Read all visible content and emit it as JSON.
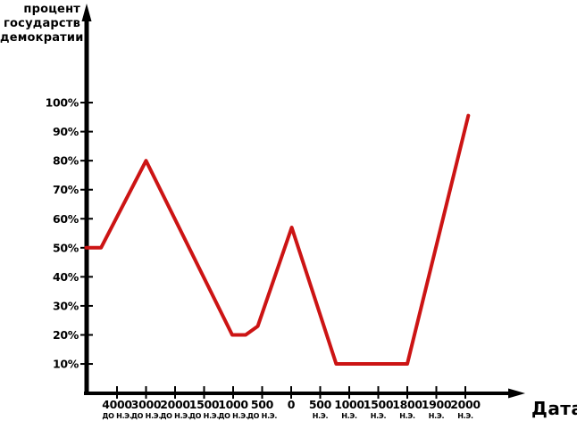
{
  "page": {
    "background_color": "#ffffff",
    "text_color": "#000000"
  },
  "chart_data": {
    "type": "line",
    "title": "",
    "ylabel": "процент государств демократии",
    "ylabel_lines": [
      "процент",
      "государств",
      "демократии"
    ],
    "xlabel": "Дата",
    "ylim": [
      0,
      100
    ],
    "grid": false,
    "legend": "none",
    "axis_color": "#000000",
    "y_ticks": [
      "100%",
      "90%",
      "80%",
      "70%",
      "60%",
      "50%",
      "40%",
      "30%",
      "20%",
      "10%"
    ],
    "y_tick_values": [
      100,
      90,
      80,
      70,
      60,
      50,
      40,
      30,
      20,
      10
    ],
    "x_ticks": [
      {
        "label": "4000",
        "era": "ДО Н.Э."
      },
      {
        "label": "3000",
        "era": "ДО Н.Э."
      },
      {
        "label": "2000",
        "era": "ДО Н.Э."
      },
      {
        "label": "1500",
        "era": "ДО Н.Э."
      },
      {
        "label": "1000",
        "era": "ДО Н.Э."
      },
      {
        "label": "500",
        "era": "ДО Н.Э."
      },
      {
        "label": "0",
        "era": ""
      },
      {
        "label": "500",
        "era": "Н.Э."
      },
      {
        "label": "1000",
        "era": "Н.Э."
      },
      {
        "label": "1500",
        "era": "Н.Э."
      },
      {
        "label": "1800",
        "era": "Н.Э."
      },
      {
        "label": "1900",
        "era": "Н.Э."
      },
      {
        "label": "2000",
        "era": "Н.Э."
      }
    ],
    "points_x_unit": "index into x_ticks (ticks are uniformly spaced); negative = left of first tick",
    "series": [
      {
        "name": "процент государств демократии",
        "color": "#cc1414",
        "points": [
          {
            "tick_x": -1.06,
            "percent": 50
          },
          {
            "tick_x": -0.55,
            "percent": 50
          },
          {
            "tick_x": 1.0,
            "percent": 80
          },
          {
            "tick_x": 3.97,
            "percent": 20
          },
          {
            "tick_x": 4.43,
            "percent": 20
          },
          {
            "tick_x": 4.85,
            "percent": 23
          },
          {
            "tick_x": 6.02,
            "percent": 57
          },
          {
            "tick_x": 7.55,
            "percent": 10
          },
          {
            "tick_x": 10.0,
            "percent": 10
          },
          {
            "tick_x": 12.1,
            "percent": 95.5
          }
        ],
        "key_readings": [
          {
            "x_label": "левый край (до 4000 до н.э.)",
            "percent": 50
          },
          {
            "x_label": "3000 до н.э.",
            "percent": 80
          },
          {
            "x_label": "1000 до н.э.",
            "percent": 20
          },
          {
            "x_label": "500 до н.э.",
            "percent": 23
          },
          {
            "x_label": "0",
            "percent": 57
          },
          {
            "x_label": "700–1800 н.э.",
            "percent": 10
          },
          {
            "x_label": "2000 н.э.",
            "percent": 95
          }
        ]
      }
    ]
  }
}
